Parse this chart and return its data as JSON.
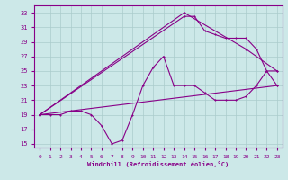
{
  "xlabel": "Windchill (Refroidissement éolien,°C)",
  "bg_color": "#cce8e8",
  "grid_color": "#aacccc",
  "line_color": "#880088",
  "xlim": [
    -0.5,
    23.5
  ],
  "ylim": [
    14.5,
    34
  ],
  "xticks": [
    0,
    1,
    2,
    3,
    4,
    5,
    6,
    7,
    8,
    9,
    10,
    11,
    12,
    13,
    14,
    15,
    16,
    17,
    18,
    19,
    20,
    21,
    22,
    23
  ],
  "yticks": [
    15,
    17,
    19,
    21,
    23,
    25,
    27,
    29,
    31,
    33
  ],
  "line1_x": [
    0,
    1,
    2,
    3,
    4,
    5,
    6,
    7,
    8,
    9,
    10,
    11,
    12,
    13,
    14,
    15,
    16,
    17,
    18,
    19,
    20,
    21,
    22,
    23
  ],
  "line1_y": [
    19,
    19,
    19,
    19.5,
    19.5,
    19,
    17.5,
    15,
    15.5,
    19,
    23,
    25.5,
    27,
    23,
    23,
    23,
    22,
    21,
    21,
    21,
    21.5,
    23,
    25,
    23
  ],
  "line2_x": [
    0,
    23
  ],
  "line2_y": [
    19,
    23
  ],
  "line3_x": [
    0,
    14,
    20,
    23
  ],
  "line3_y": [
    19,
    33,
    28,
    25
  ],
  "line4_x": [
    0,
    14,
    15,
    16,
    17,
    18,
    19,
    20,
    21,
    22,
    23
  ],
  "line4_y": [
    19,
    32.5,
    32.5,
    30.5,
    30,
    29.5,
    29.5,
    29.5,
    28,
    25,
    25
  ]
}
